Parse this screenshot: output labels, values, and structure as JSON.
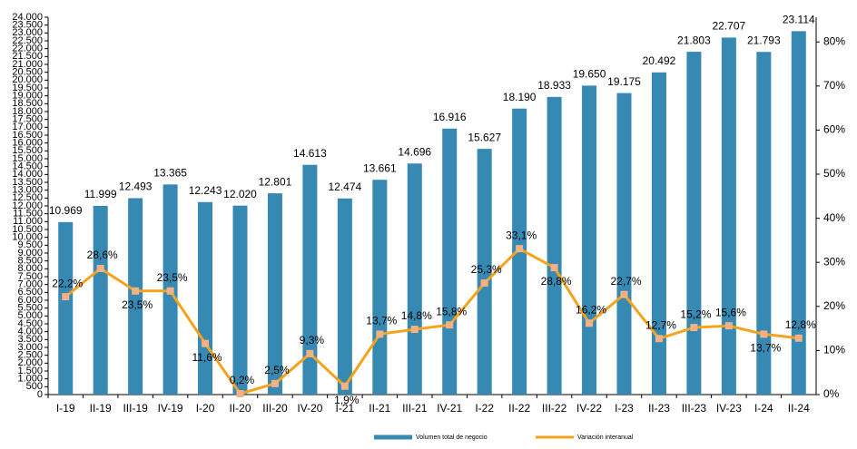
{
  "chart_data": {
    "type": "bar",
    "categories": [
      "I-19",
      "II-19",
      "III-19",
      "IV-19",
      "I-20",
      "II-20",
      "III-20",
      "IV-20",
      "I-21",
      "II-21",
      "III-21",
      "IV-21",
      "I-22",
      "II-22",
      "III-22",
      "IV-22",
      "I-23",
      "II-23",
      "III-23",
      "IV-23",
      "I-24",
      "II-24"
    ],
    "series": [
      {
        "name": "Volumen total de negocio",
        "type": "bar",
        "color": "#3589b3",
        "values": [
          10969,
          11999,
          12493,
          13365,
          12243,
          12020,
          12801,
          14613,
          12474,
          13661,
          14696,
          16916,
          15627,
          18190,
          18933,
          19650,
          19175,
          20492,
          21803,
          22707,
          21793,
          23114
        ],
        "value_labels": [
          "10.969",
          "11.999",
          "12.493",
          "13.365",
          "12.243",
          "12.020",
          "12.801",
          "14.613",
          "12.474",
          "13.661",
          "14.696",
          "16.916",
          "15.627",
          "18.190",
          "18.933",
          "19.650",
          "19.175",
          "20.492",
          "21.803",
          "22.707",
          "21.793",
          "23.114"
        ]
      },
      {
        "name": "Variación interanual",
        "type": "line",
        "axis": "y2",
        "color": "#f5a21d",
        "marker_color": "#f4b183",
        "values": [
          22.2,
          28.6,
          23.5,
          23.5,
          11.6,
          0.2,
          2.5,
          9.3,
          1.9,
          13.7,
          14.8,
          15.8,
          25.3,
          33.1,
          28.8,
          16.2,
          22.7,
          12.7,
          15.2,
          15.6,
          13.7,
          12.8
        ],
        "value_labels": [
          "22,2%",
          "28,6%",
          "23,5%",
          "23,5%",
          "11,6%",
          "0,2%",
          "2,5%",
          "9,3%",
          "1,9%",
          "13,7%",
          "14,8%",
          "15,8%",
          "25,3%",
          "33,1%",
          "28,8%",
          "16,2%",
          "22,7%",
          "12,7%",
          "15,2%",
          "15,6%",
          "13,7%",
          "12,8%"
        ]
      }
    ],
    "ylim": [
      0,
      24000
    ],
    "yticks": [
      0,
      500,
      {
        "value": 1000,
        "label": "1.000"
      },
      {
        "value": 1500,
        "label": "1.500"
      },
      {
        "value": 2000,
        "label": "2.000"
      },
      {
        "value": 2500,
        "label": "2.500"
      },
      {
        "value": 3000,
        "label": "3.000"
      },
      {
        "value": 3500,
        "label": "3.500"
      },
      {
        "value": 4000,
        "label": "4.000"
      },
      {
        "value": 4500,
        "label": "4.500"
      },
      {
        "value": 5000,
        "label": "5.000"
      },
      {
        "value": 5500,
        "label": "5.500"
      },
      {
        "value": 6000,
        "label": "6.000"
      },
      {
        "value": 6500,
        "label": "6.500"
      },
      {
        "value": 7000,
        "label": "7.000"
      },
      {
        "value": 7500,
        "label": "7.500"
      },
      {
        "value": 8000,
        "label": "8.000"
      },
      {
        "value": 8500,
        "label": "8.500"
      },
      {
        "value": 9000,
        "label": "9.000"
      },
      {
        "value": 9500,
        "label": "9.500"
      },
      {
        "value": 10000,
        "label": "10.000"
      },
      {
        "value": 10500,
        "label": "10.500"
      },
      {
        "value": 11000,
        "label": "11.000"
      },
      {
        "value": 11500,
        "label": "11.500"
      },
      {
        "value": 12000,
        "label": "12.000"
      },
      {
        "value": 12500,
        "label": "12.500"
      },
      {
        "value": 13000,
        "label": "13.000"
      },
      {
        "value": 13500,
        "label": "13.500"
      },
      {
        "value": 14000,
        "label": "14.000"
      },
      {
        "value": 14500,
        "label": "14.500"
      },
      {
        "value": 15000,
        "label": "15.000"
      },
      {
        "value": 15500,
        "label": "15.500"
      },
      {
        "value": 16000,
        "label": "16.000"
      },
      {
        "value": 16500,
        "label": "16.500"
      },
      {
        "value": 17000,
        "label": "17.000"
      },
      {
        "value": 17500,
        "label": "17.500"
      },
      {
        "value": 18000,
        "label": "18.000"
      },
      {
        "value": 18500,
        "label": "18.500"
      },
      {
        "value": 19000,
        "label": "19.000"
      },
      {
        "value": 19500,
        "label": "19.500"
      },
      {
        "value": 20000,
        "label": "20.000"
      },
      {
        "value": 20500,
        "label": "20.500"
      },
      {
        "value": 21000,
        "label": "21.000"
      },
      {
        "value": 21500,
        "label": "21.500"
      },
      {
        "value": 22000,
        "label": "22.000"
      },
      {
        "value": 22500,
        "label": "22.500"
      },
      {
        "value": 23000,
        "label": "23.000"
      },
      {
        "value": 23500,
        "label": "23.500"
      },
      {
        "value": 24000,
        "label": "24.000"
      }
    ],
    "y2lim": [
      0,
      85.6
    ],
    "y2ticks": [
      {
        "value": 0,
        "label": "0%"
      },
      {
        "value": 10,
        "label": "10%"
      },
      {
        "value": 20,
        "label": "20%"
      },
      {
        "value": 30,
        "label": "30%"
      },
      {
        "value": 40,
        "label": "40%"
      },
      {
        "value": 50,
        "label": "50%"
      },
      {
        "value": 60,
        "label": "60%"
      },
      {
        "value": 70,
        "label": "70%"
      },
      {
        "value": 80,
        "label": "80%"
      }
    ],
    "legend": "bottom"
  }
}
